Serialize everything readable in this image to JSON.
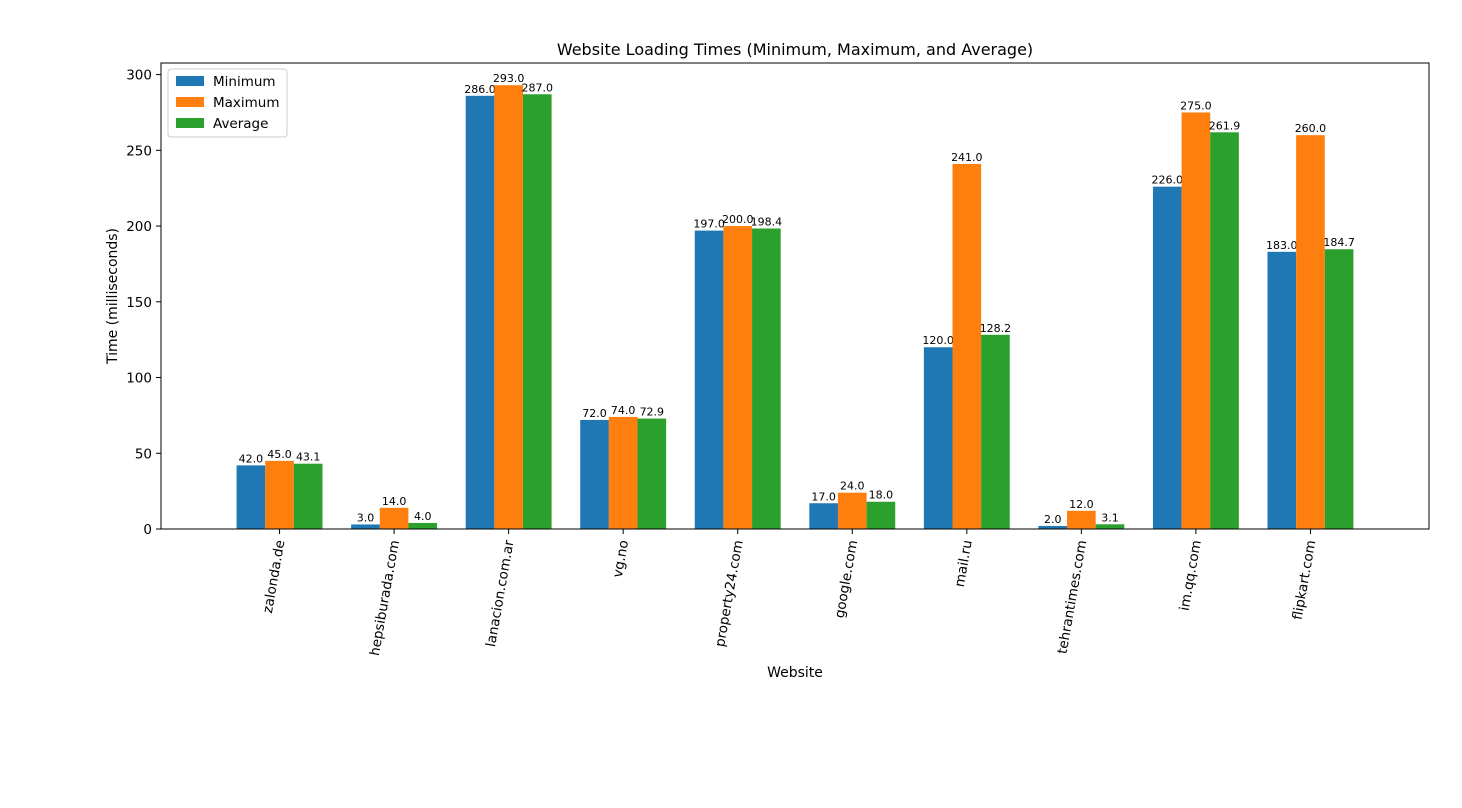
{
  "chart_data": {
    "type": "bar",
    "title": "Website Loading Times (Minimum, Maximum, and Average)",
    "xlabel": "Website",
    "ylabel": "Time (milliseconds)",
    "ylim": [
      0,
      307.65
    ],
    "yticks": [
      0,
      50,
      100,
      150,
      200,
      250,
      300
    ],
    "categories": [
      "zalonda.de",
      "hepsiburada.com",
      "lanacion.com.ar",
      "vg.no",
      "property24.com",
      "google.com",
      "mail.ru",
      "tehrantimes.com",
      "im.qq.com",
      "flipkart.com"
    ],
    "series": [
      {
        "name": "Minimum",
        "color": "#1f77b4",
        "values": [
          42.0,
          3.0,
          286.0,
          72.0,
          197.0,
          17.0,
          120.0,
          2.0,
          226.0,
          183.0
        ]
      },
      {
        "name": "Maximum",
        "color": "#ff7f0e",
        "values": [
          45.0,
          14.0,
          293.0,
          74.0,
          200.0,
          24.0,
          241.0,
          12.0,
          275.0,
          260.0
        ]
      },
      {
        "name": "Average",
        "color": "#2ca02c",
        "values": [
          43.1,
          4.0,
          287.0,
          72.9,
          198.4,
          18.0,
          128.2,
          3.1,
          261.9,
          184.7
        ]
      }
    ],
    "legend": "top-left",
    "grid": false,
    "xtick_rotation_deg": 80
  }
}
